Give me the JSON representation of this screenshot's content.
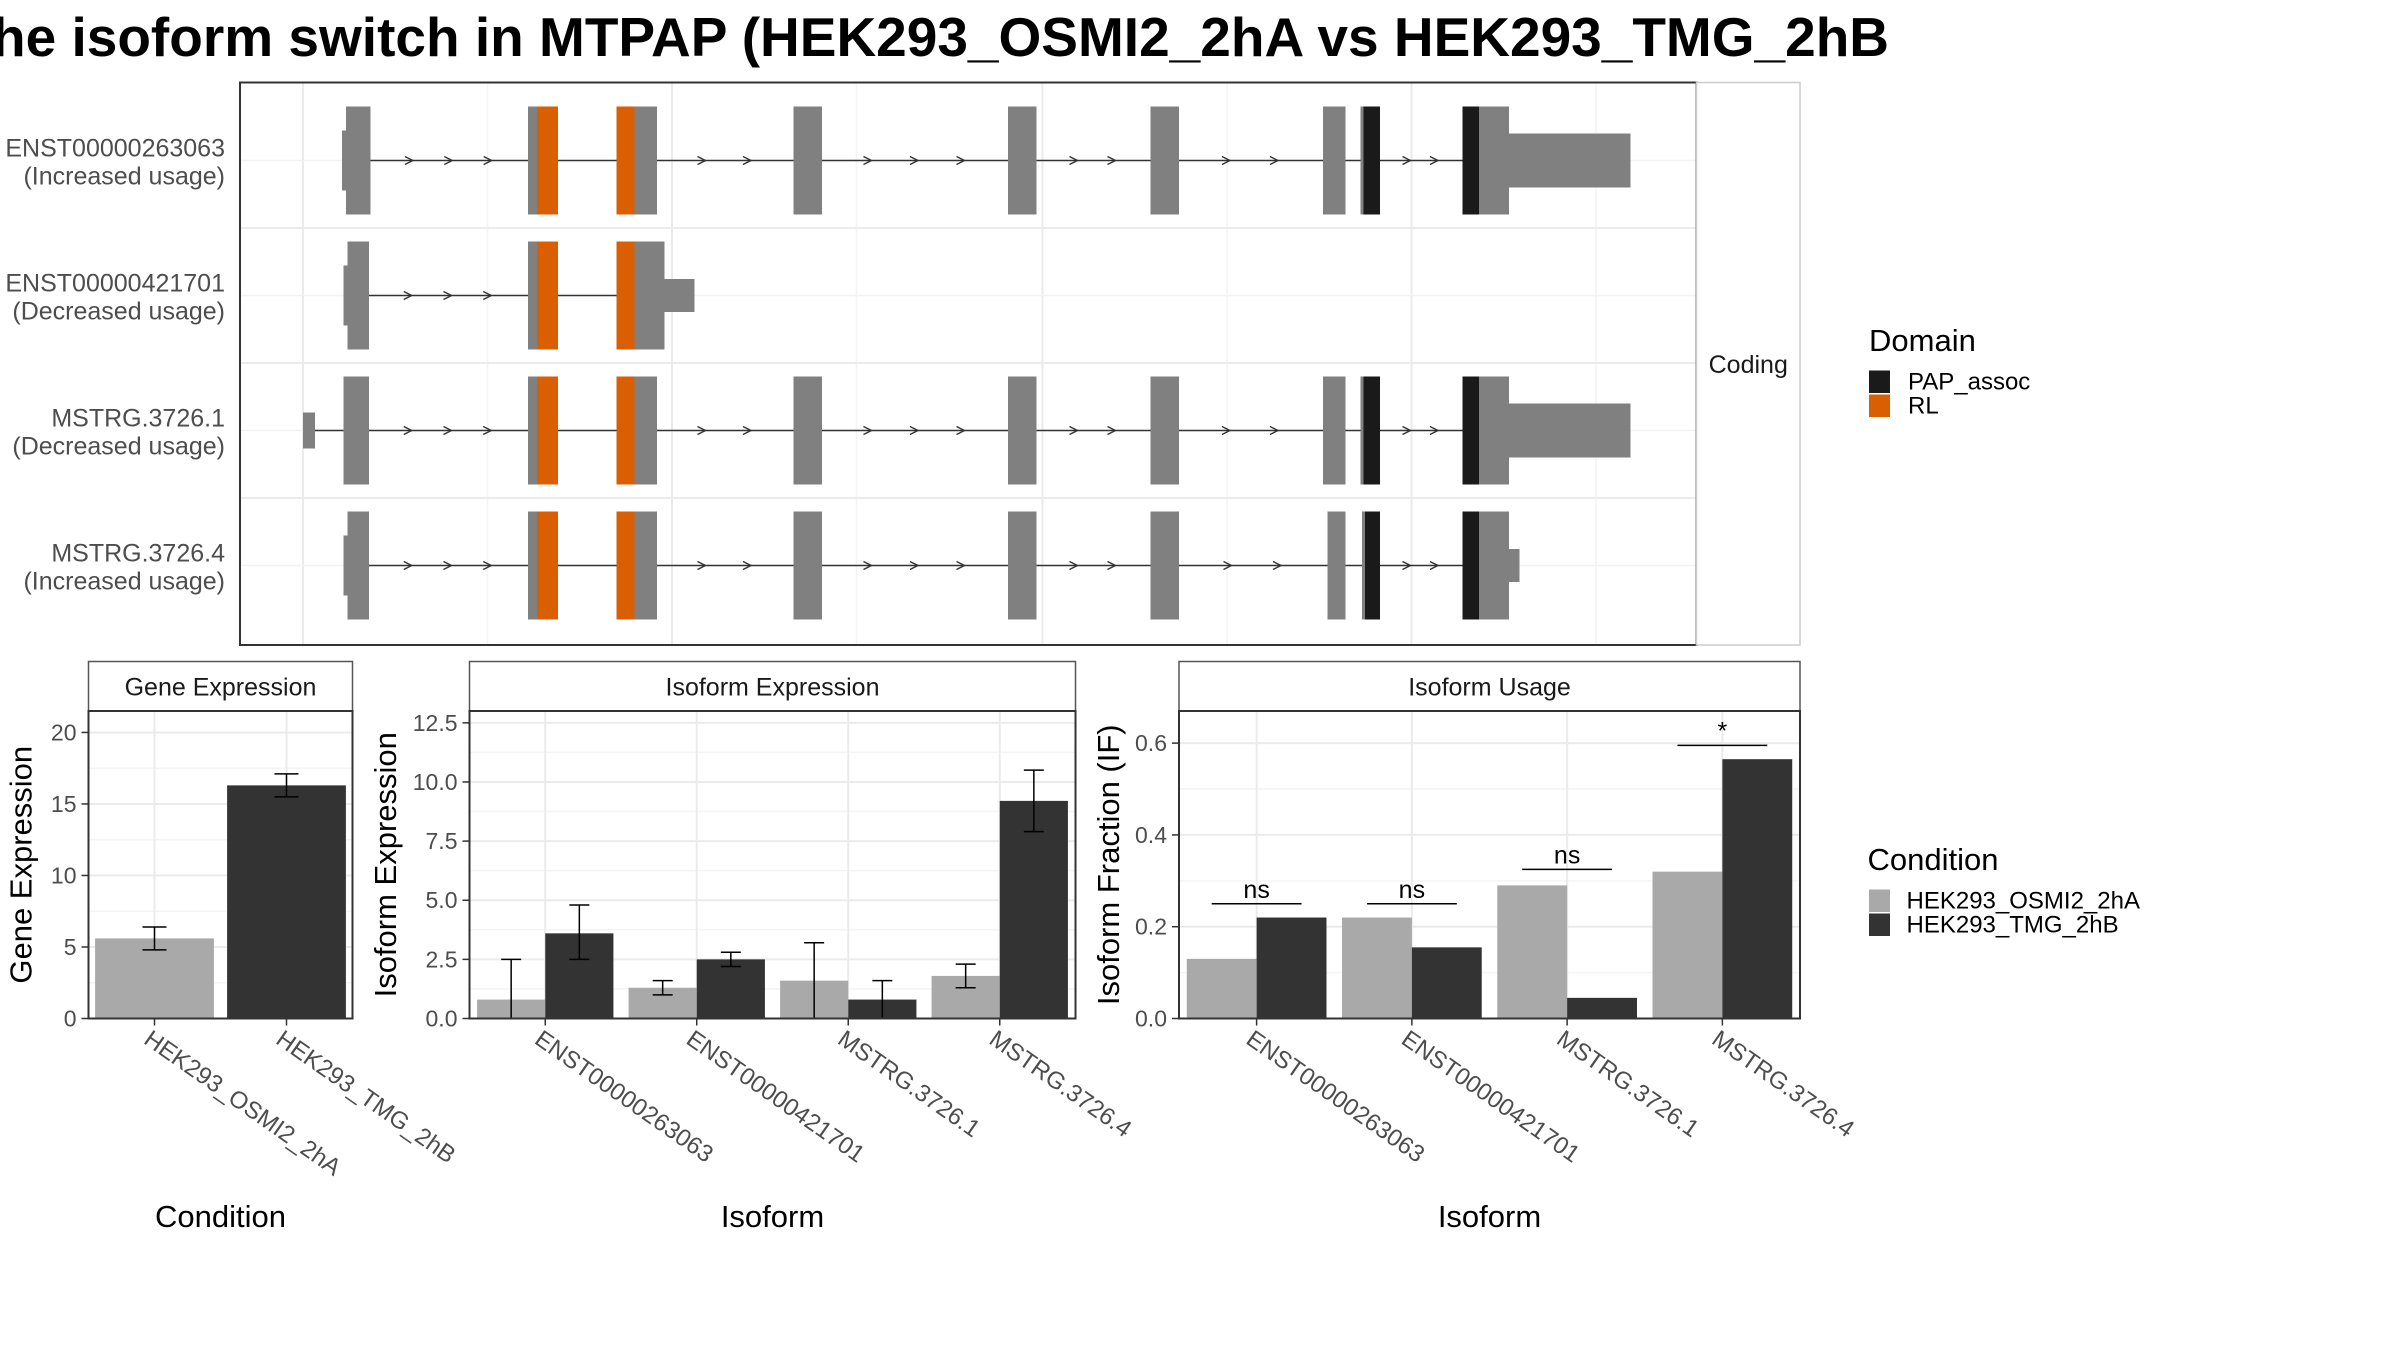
{
  "figure_title": "he isoform switch in MTPAP (HEK293_OSMI2_2hA vs HEK293_TMG_2hB",
  "colors": {
    "exon": "#808080",
    "pap_assoc": "#1a1a1a",
    "rl": "#d95f02",
    "cond_a": "#a9a9a9",
    "cond_b": "#333333",
    "grid": "#ebebeb",
    "panel_border": "#333333"
  },
  "structure": {
    "facet_label": "Coding",
    "transcripts": [
      {
        "id": "ENST00000263063",
        "usage": "(Increased usage)",
        "exons": [
          [
            228,
            247
          ],
          [
            352,
            372
          ],
          [
            411,
            438
          ],
          [
            529,
            548
          ],
          [
            672,
            691
          ],
          [
            767,
            786
          ],
          [
            882,
            897
          ],
          [
            907,
            920
          ],
          [
            975,
            1006
          ]
        ],
        "utr": [
          1006,
          1087
        ],
        "orange": [
          [
            358,
            372
          ],
          [
            411,
            423
          ]
        ],
        "black": [
          [
            909,
            920
          ],
          [
            975,
            986
          ]
        ],
        "tall_utr": true
      },
      {
        "id": "ENST00000421701",
        "usage": "(Decreased usage)",
        "exons": [
          [
            229,
            246
          ],
          [
            352,
            372
          ],
          [
            411,
            443
          ]
        ],
        "utr": [
          443,
          463
        ],
        "orange": [
          [
            358,
            372
          ],
          [
            411,
            423
          ]
        ],
        "black": [],
        "tall_utr": false
      },
      {
        "id": "MSTRG.3726.1",
        "usage": "(Decreased usage)",
        "exons": [
          [
            202,
            210
          ],
          [
            229,
            246
          ],
          [
            352,
            372
          ],
          [
            411,
            438
          ],
          [
            529,
            548
          ],
          [
            672,
            691
          ],
          [
            767,
            786
          ],
          [
            882,
            897
          ],
          [
            907,
            920
          ],
          [
            975,
            1006
          ]
        ],
        "utr": [
          1006,
          1087
        ],
        "orange": [
          [
            358,
            372
          ],
          [
            411,
            423
          ]
        ],
        "black": [
          [
            909,
            920
          ],
          [
            975,
            986
          ]
        ],
        "tall_utr": true
      },
      {
        "id": "MSTRG.3726.4",
        "usage": "(Increased usage)",
        "exons": [
          [
            229,
            246
          ],
          [
            352,
            372
          ],
          [
            411,
            438
          ],
          [
            529,
            548
          ],
          [
            672,
            691
          ],
          [
            767,
            786
          ],
          [
            885,
            897
          ],
          [
            908,
            920
          ],
          [
            975,
            1006
          ]
        ],
        "utr": [
          1006,
          1013
        ],
        "orange": [
          [
            358,
            372
          ],
          [
            411,
            423
          ]
        ],
        "black": [
          [
            910,
            920
          ],
          [
            975,
            986
          ]
        ],
        "tall_utr": false
      }
    ]
  },
  "domain_legend": {
    "title": "Domain",
    "items": [
      {
        "label": "PAP_assoc",
        "color": "#1a1a1a"
      },
      {
        "label": "RL",
        "color": "#d95f02"
      }
    ]
  },
  "condition_legend": {
    "title": "Condition",
    "items": [
      {
        "label": "HEK293_OSMI2_2hA",
        "color": "#a9a9a9"
      },
      {
        "label": "HEK293_TMG_2hB",
        "color": "#333333"
      }
    ]
  },
  "chart_data": [
    {
      "type": "bar",
      "title": "Gene Expression",
      "xlabel": "Condition",
      "ylabel": "Gene Expression",
      "ylim": [
        0,
        21.5
      ],
      "yticks": [
        0,
        5,
        10,
        15,
        20
      ],
      "yticklabels": [
        "0",
        "5",
        "10",
        "15",
        "20"
      ],
      "categories": [
        "HEK293_OSMI2_2hA",
        "HEK293_TMG_2hB"
      ],
      "values": [
        5.6,
        16.3
      ],
      "errors": [
        [
          4.8,
          6.4
        ],
        [
          15.5,
          17.1
        ]
      ]
    },
    {
      "type": "bar",
      "title": "Isoform Expression",
      "xlabel": "Isoform",
      "ylabel": "Isoform Expression",
      "ylim": [
        0,
        13.0
      ],
      "yticks": [
        0,
        2.5,
        5,
        7.5,
        10,
        12.5
      ],
      "yticklabels": [
        "0.0",
        "2.5",
        "5.0",
        "7.5",
        "10.0",
        "12.5"
      ],
      "categories": [
        "ENST00000263063",
        "ENST00000421701",
        "MSTRG.3726.1",
        "MSTRG.3726.4"
      ],
      "series": [
        {
          "name": "HEK293_OSMI2_2hA",
          "values": [
            0.8,
            1.3,
            1.6,
            1.8
          ],
          "errors": [
            [
              0.0,
              2.5
            ],
            [
              1.0,
              1.6
            ],
            [
              0.0,
              3.2
            ],
            [
              1.3,
              2.3
            ]
          ]
        },
        {
          "name": "HEK293_TMG_2hB",
          "values": [
            3.6,
            2.5,
            0.8,
            9.2
          ],
          "errors": [
            [
              2.5,
              4.8
            ],
            [
              2.2,
              2.8
            ],
            [
              0.0,
              1.6
            ],
            [
              7.9,
              10.5
            ]
          ]
        }
      ]
    },
    {
      "type": "bar",
      "title": "Isoform Usage",
      "xlabel": "Isoform",
      "ylabel": "Isoform Fraction (IF)",
      "ylim": [
        0,
        0.67
      ],
      "yticks": [
        0,
        0.2,
        0.4,
        0.6
      ],
      "yticklabels": [
        "0.0",
        "0.2",
        "0.4",
        "0.6"
      ],
      "categories": [
        "ENST00000263063",
        "ENST00000421701",
        "MSTRG.3726.1",
        "MSTRG.3726.4"
      ],
      "series": [
        {
          "name": "HEK293_OSMI2_2hA",
          "values": [
            0.13,
            0.22,
            0.29,
            0.32
          ]
        },
        {
          "name": "HEK293_TMG_2hB",
          "values": [
            0.22,
            0.155,
            0.045,
            0.565
          ]
        }
      ],
      "significance": [
        "ns",
        "ns",
        "ns",
        "*"
      ],
      "sig_level": [
        0.25,
        0.25,
        0.325,
        0.595
      ]
    }
  ]
}
